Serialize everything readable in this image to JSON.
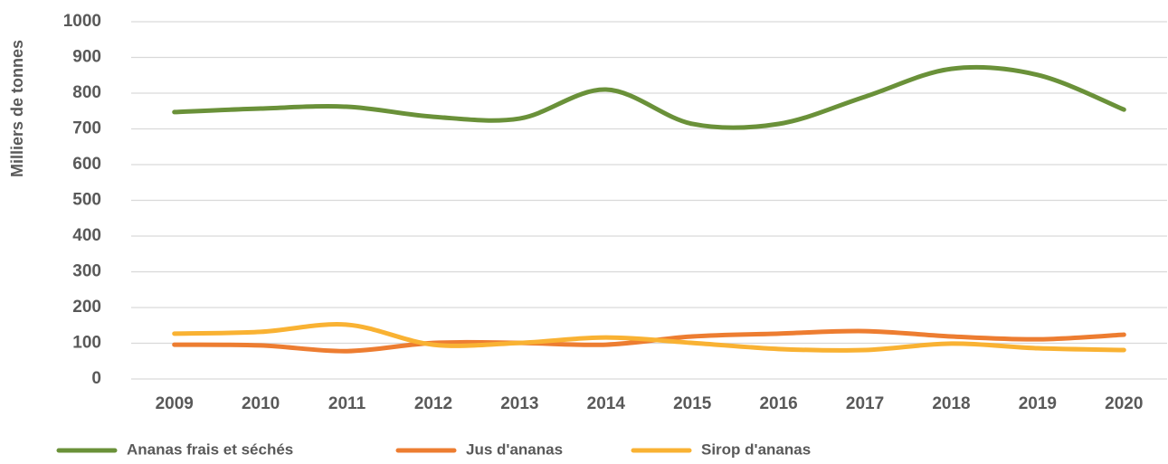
{
  "chart_data": {
    "type": "line",
    "ylabel": "Milliers de tonnes",
    "categories": [
      "2009",
      "2010",
      "2011",
      "2012",
      "2013",
      "2014",
      "2015",
      "2016",
      "2017",
      "2018",
      "2019",
      "2020"
    ],
    "series": [
      {
        "name": "Ananas frais et séchés",
        "color": "#6a9139",
        "values": [
          747,
          757,
          762,
          734,
          729,
          810,
          714,
          714,
          790,
          868,
          851,
          754
        ]
      },
      {
        "name": "Jus d'ananas",
        "color": "#ed7d31",
        "values": [
          96,
          94,
          78,
          101,
          101,
          96,
          119,
          127,
          134,
          119,
          111,
          124
        ]
      },
      {
        "name": "Sirop d'ananas",
        "color": "#f9b233",
        "values": [
          127,
          132,
          152,
          96,
          101,
          116,
          101,
          84,
          81,
          99,
          86,
          81
        ]
      }
    ],
    "ylim": [
      0,
      1000
    ],
    "yticks": [
      0,
      100,
      200,
      300,
      400,
      500,
      600,
      700,
      800,
      900,
      1000
    ],
    "grid": true,
    "smooth": true,
    "legend": "bottom"
  }
}
